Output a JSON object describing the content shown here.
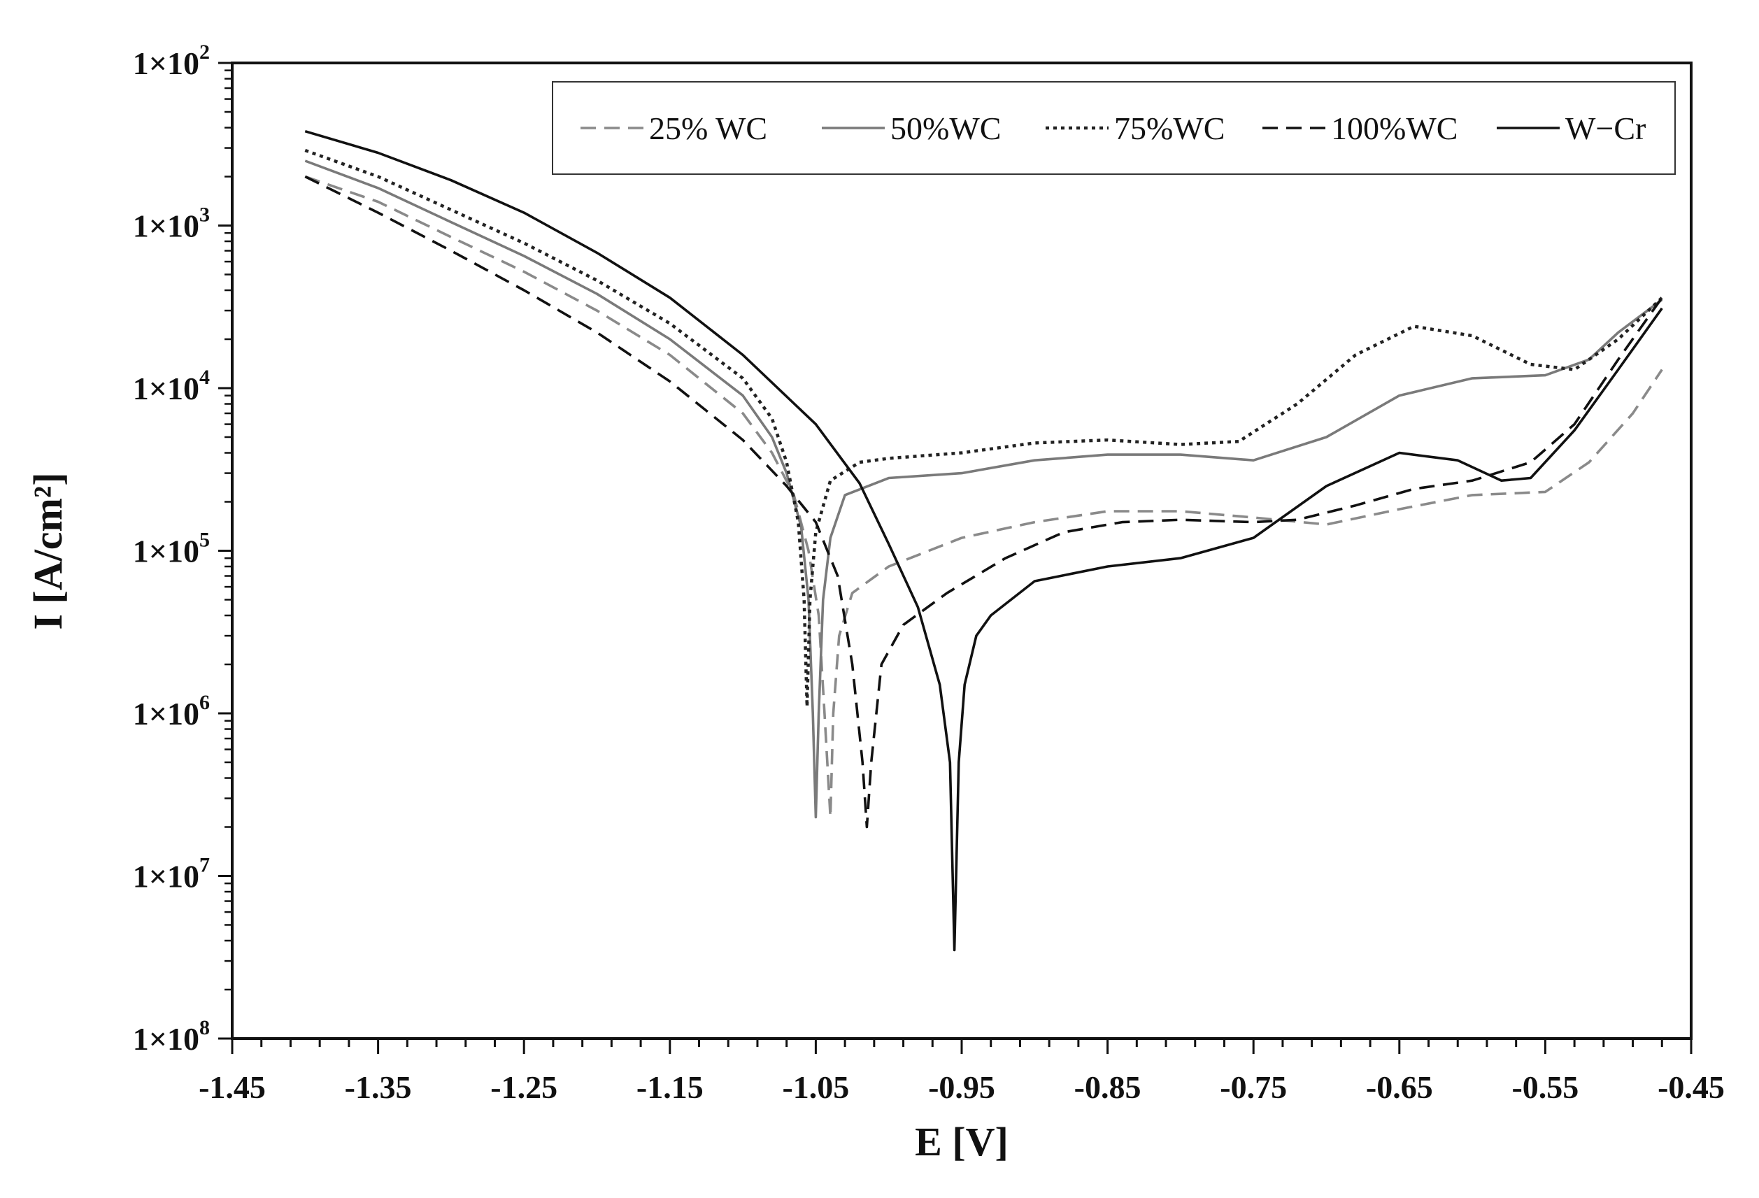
{
  "chart_data": {
    "type": "line",
    "title": "",
    "xlabel": "E [V]",
    "ylabel": "I [A/cm²]",
    "xlim": [
      -1.45,
      -0.45
    ],
    "ylim": [
      1e-08,
      0.01
    ],
    "y_scale": "log",
    "grid": false,
    "legend_position": "top-right",
    "x_tick_labels": [
      "-1.45",
      "-1.35",
      "-1.25",
      "-1.15",
      "-1.05",
      "-0.95",
      "-0.85",
      "-0.75",
      "-0.65",
      "-0.55",
      "-0.45"
    ],
    "y_tick_labels": [
      {
        "value": 1e-08,
        "mantissa": "1×10",
        "exp": "8"
      },
      {
        "value": 1e-07,
        "mantissa": "1×10",
        "exp": "7"
      },
      {
        "value": 1e-06,
        "mantissa": "1×10",
        "exp": "6"
      },
      {
        "value": 1e-05,
        "mantissa": "1×10",
        "exp": "5"
      },
      {
        "value": 0.0001,
        "mantissa": "1×10",
        "exp": "4"
      },
      {
        "value": 0.001,
        "mantissa": "1×10",
        "exp": "3"
      },
      {
        "value": 0.01,
        "mantissa": "1×10",
        "exp": "2"
      }
    ],
    "series": [
      {
        "name": "25% WC",
        "color": "#8a8a8a",
        "dash": "dashed",
        "points": [
          [
            -1.4,
            0.002
          ],
          [
            -1.35,
            0.0014
          ],
          [
            -1.3,
            0.00085
          ],
          [
            -1.25,
            0.00052
          ],
          [
            -1.2,
            0.0003
          ],
          [
            -1.15,
            0.00016
          ],
          [
            -1.1,
            7e-05
          ],
          [
            -1.08,
            4e-05
          ],
          [
            -1.065,
            2.2e-05
          ],
          [
            -1.055,
            1e-05
          ],
          [
            -1.048,
            4e-06
          ],
          [
            -1.044,
            1e-06
          ],
          [
            -1.04,
            2.3e-07
          ],
          [
            -1.038,
            1e-06
          ],
          [
            -1.034,
            3e-06
          ],
          [
            -1.025,
            5.5e-06
          ],
          [
            -1.0,
            8e-06
          ],
          [
            -0.95,
            1.2e-05
          ],
          [
            -0.9,
            1.5e-05
          ],
          [
            -0.85,
            1.75e-05
          ],
          [
            -0.8,
            1.75e-05
          ],
          [
            -0.75,
            1.6e-05
          ],
          [
            -0.7,
            1.45e-05
          ],
          [
            -0.65,
            1.8e-05
          ],
          [
            -0.6,
            2.2e-05
          ],
          [
            -0.55,
            2.3e-05
          ],
          [
            -0.52,
            3.5e-05
          ],
          [
            -0.49,
            7e-05
          ],
          [
            -0.47,
            0.00013
          ]
        ]
      },
      {
        "name": "50%WC",
        "color": "#7a7a7a",
        "dash": "solid",
        "points": [
          [
            -1.4,
            0.0025
          ],
          [
            -1.35,
            0.0017
          ],
          [
            -1.3,
            0.00105
          ],
          [
            -1.25,
            0.00065
          ],
          [
            -1.2,
            0.00038
          ],
          [
            -1.15,
            0.0002
          ],
          [
            -1.1,
            9e-05
          ],
          [
            -1.08,
            5e-05
          ],
          [
            -1.07,
            3e-05
          ],
          [
            -1.06,
            1.4e-05
          ],
          [
            -1.055,
            5e-06
          ],
          [
            -1.052,
            1e-06
          ],
          [
            -1.05,
            2.3e-07
          ],
          [
            -1.048,
            1e-06
          ],
          [
            -1.045,
            5e-06
          ],
          [
            -1.04,
            1.2e-05
          ],
          [
            -1.03,
            2.2e-05
          ],
          [
            -1.0,
            2.8e-05
          ],
          [
            -0.95,
            3e-05
          ],
          [
            -0.9,
            3.6e-05
          ],
          [
            -0.85,
            3.9e-05
          ],
          [
            -0.8,
            3.9e-05
          ],
          [
            -0.75,
            3.6e-05
          ],
          [
            -0.7,
            5e-05
          ],
          [
            -0.65,
            9e-05
          ],
          [
            -0.6,
            0.000115
          ],
          [
            -0.55,
            0.00012
          ],
          [
            -0.52,
            0.00015
          ],
          [
            -0.5,
            0.00022
          ],
          [
            -0.47,
            0.00035
          ]
        ]
      },
      {
        "name": "75%WC",
        "color": "#222222",
        "dash": "dotted",
        "points": [
          [
            -1.4,
            0.0029
          ],
          [
            -1.35,
            0.002
          ],
          [
            -1.3,
            0.00125
          ],
          [
            -1.25,
            0.00078
          ],
          [
            -1.2,
            0.00046
          ],
          [
            -1.15,
            0.00025
          ],
          [
            -1.1,
            0.000115
          ],
          [
            -1.08,
            6.5e-05
          ],
          [
            -1.07,
            3.5e-05
          ],
          [
            -1.062,
            1.5e-05
          ],
          [
            -1.058,
            5e-06
          ],
          [
            -1.056,
            1.1e-06
          ],
          [
            -1.054,
            5e-06
          ],
          [
            -1.05,
            1.3e-05
          ],
          [
            -1.04,
            2.7e-05
          ],
          [
            -1.02,
            3.5e-05
          ],
          [
            -1.0,
            3.7e-05
          ],
          [
            -0.95,
            4e-05
          ],
          [
            -0.9,
            4.6e-05
          ],
          [
            -0.85,
            4.8e-05
          ],
          [
            -0.8,
            4.5e-05
          ],
          [
            -0.76,
            4.7e-05
          ],
          [
            -0.72,
            8e-05
          ],
          [
            -0.68,
            0.00016
          ],
          [
            -0.64,
            0.00024
          ],
          [
            -0.6,
            0.00021
          ],
          [
            -0.56,
            0.00014
          ],
          [
            -0.53,
            0.00013
          ],
          [
            -0.5,
            0.0002
          ],
          [
            -0.47,
            0.00036
          ]
        ]
      },
      {
        "name": "100%WC",
        "color": "#111111",
        "dash": "dashed",
        "points": [
          [
            -1.4,
            0.002
          ],
          [
            -1.35,
            0.0012
          ],
          [
            -1.3,
            0.0007
          ],
          [
            -1.25,
            0.0004
          ],
          [
            -1.2,
            0.00022
          ],
          [
            -1.15,
            0.00011
          ],
          [
            -1.1,
            4.8e-05
          ],
          [
            -1.07,
            2.5e-05
          ],
          [
            -1.05,
            1.5e-05
          ],
          [
            -1.035,
            7e-06
          ],
          [
            -1.025,
            2e-06
          ],
          [
            -1.018,
            5e-07
          ],
          [
            -1.015,
            2e-07
          ],
          [
            -1.012,
            5e-07
          ],
          [
            -1.005,
            2e-06
          ],
          [
            -0.99,
            3.5e-06
          ],
          [
            -0.96,
            5.5e-06
          ],
          [
            -0.92,
            9e-06
          ],
          [
            -0.88,
            1.3e-05
          ],
          [
            -0.84,
            1.5e-05
          ],
          [
            -0.8,
            1.55e-05
          ],
          [
            -0.75,
            1.5e-05
          ],
          [
            -0.72,
            1.55e-05
          ],
          [
            -0.68,
            1.9e-05
          ],
          [
            -0.64,
            2.4e-05
          ],
          [
            -0.6,
            2.7e-05
          ],
          [
            -0.56,
            3.5e-05
          ],
          [
            -0.53,
            6e-05
          ],
          [
            -0.5,
            0.00015
          ],
          [
            -0.47,
            0.00036
          ]
        ]
      },
      {
        "name": "W−Cr",
        "color": "#111111",
        "dash": "solid",
        "points": [
          [
            -1.4,
            0.0038
          ],
          [
            -1.35,
            0.0028
          ],
          [
            -1.3,
            0.0019
          ],
          [
            -1.25,
            0.0012
          ],
          [
            -1.2,
            0.00068
          ],
          [
            -1.15,
            0.00036
          ],
          [
            -1.1,
            0.00016
          ],
          [
            -1.05,
            6e-05
          ],
          [
            -1.02,
            2.6e-05
          ],
          [
            -1.0,
            1.1e-05
          ],
          [
            -0.98,
            4.5e-06
          ],
          [
            -0.965,
            1.5e-06
          ],
          [
            -0.958,
            5e-07
          ],
          [
            -0.955,
            3.5e-08
          ],
          [
            -0.952,
            5e-07
          ],
          [
            -0.948,
            1.5e-06
          ],
          [
            -0.94,
            3e-06
          ],
          [
            -0.93,
            4e-06
          ],
          [
            -0.9,
            6.5e-06
          ],
          [
            -0.85,
            8e-06
          ],
          [
            -0.8,
            9e-06
          ],
          [
            -0.75,
            1.2e-05
          ],
          [
            -0.7,
            2.5e-05
          ],
          [
            -0.65,
            4e-05
          ],
          [
            -0.61,
            3.6e-05
          ],
          [
            -0.58,
            2.7e-05
          ],
          [
            -0.56,
            2.8e-05
          ],
          [
            -0.53,
            5.5e-05
          ],
          [
            -0.5,
            0.00013
          ],
          [
            -0.47,
            0.00031
          ]
        ]
      }
    ]
  }
}
